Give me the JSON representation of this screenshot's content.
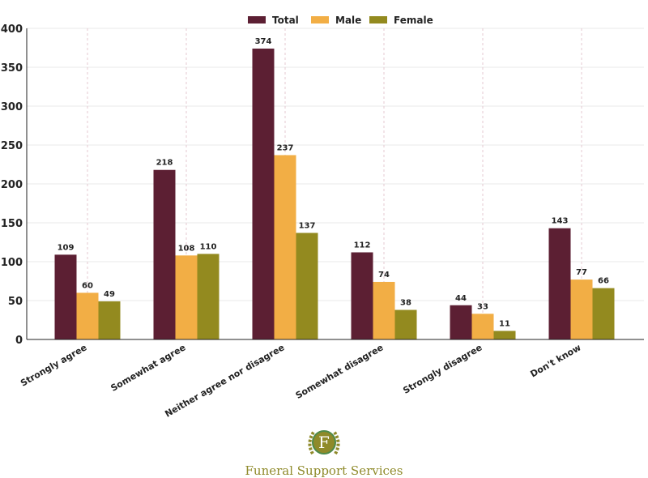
{
  "chart_data": {
    "type": "bar",
    "title": "",
    "xlabel": "",
    "ylabel": "",
    "categories": [
      "Strongly agree",
      "Somewhat agree",
      "Neither agree nor disagree",
      "Somewhat disagree",
      "Strongly disagree",
      "Don't know"
    ],
    "series": [
      {
        "name": "Total",
        "color": "#5c1f33",
        "values": [
          109,
          218,
          374,
          112,
          44,
          143
        ]
      },
      {
        "name": "Male",
        "color": "#f2ae45",
        "values": [
          60,
          108,
          237,
          74,
          33,
          77
        ]
      },
      {
        "name": "Female",
        "color": "#938a1f",
        "values": [
          49,
          110,
          137,
          38,
          11,
          66
        ]
      }
    ],
    "ylim": [
      0,
      400
    ],
    "yticks": [
      0,
      50,
      100,
      150,
      200,
      250,
      300,
      350,
      400
    ],
    "grid": true,
    "legend": "top-center"
  },
  "logo": {
    "letter": "F",
    "name": "Funeral Support Services"
  }
}
